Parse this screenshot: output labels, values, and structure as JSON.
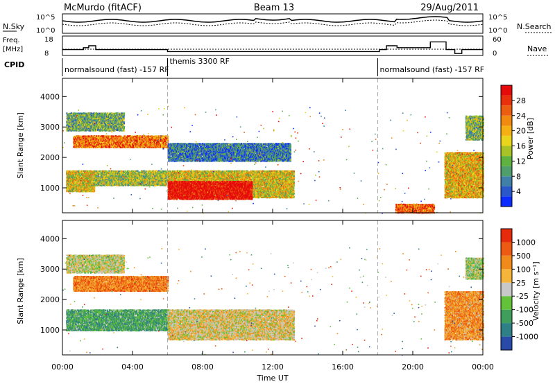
{
  "header": {
    "radio": "McMurdo (fitACF)",
    "beam": "Beam 13",
    "date": "29/Aug/2011"
  },
  "summary_panels": {
    "nsky": {
      "label": "N.Sky",
      "ticks": [
        "10^5",
        "10^0"
      ]
    },
    "nsearch": {
      "label": "N.Search",
      "ticks": [
        "10^5",
        "10^0"
      ]
    },
    "freq": {
      "label_line1": "Freq.",
      "label_line2": "[MHz]",
      "ticks": [
        "18",
        "8"
      ]
    },
    "nave": {
      "label": "Nave",
      "ticks": [
        "60",
        "0"
      ]
    },
    "cpid": {
      "label": "CPID",
      "segments": [
        {
          "name": "normalsound (fast) -157 RF",
          "start_hour": 0,
          "end_hour": 6
        },
        {
          "name": "themis 3300 RF",
          "start_hour": 6,
          "end_hour": 18
        },
        {
          "name": "normalsound (fast) -157 RF",
          "start_hour": 18,
          "end_hour": 24
        }
      ],
      "freq_steps": [
        {
          "start_hour": 0,
          "end_hour": 1.2,
          "value": 11
        },
        {
          "start_hour": 1.2,
          "end_hour": 1.5,
          "value": 12
        },
        {
          "start_hour": 1.5,
          "end_hour": 1.9,
          "value": 13
        },
        {
          "start_hour": 1.9,
          "end_hour": 6.0,
          "value": 11
        },
        {
          "start_hour": 6.0,
          "end_hour": 18.1,
          "value": 10
        },
        {
          "start_hour": 18.1,
          "end_hour": 18.5,
          "value": 11
        },
        {
          "start_hour": 18.5,
          "end_hour": 19.1,
          "value": 13
        },
        {
          "start_hour": 19.1,
          "end_hour": 20.3,
          "value": 12
        },
        {
          "start_hour": 20.3,
          "end_hour": 21.0,
          "value": 12
        },
        {
          "start_hour": 21.0,
          "end_hour": 21.9,
          "value": 15
        },
        {
          "start_hour": 21.9,
          "end_hour": 22.4,
          "value": 11
        },
        {
          "start_hour": 22.4,
          "end_hour": 22.8,
          "value": 9
        },
        {
          "start_hour": 22.8,
          "end_hour": 24.0,
          "value": 11
        }
      ]
    }
  },
  "chart_data": [
    {
      "type": "heatmap",
      "name": "power",
      "ylabel": "Slant Range [km]",
      "ylim": [
        180,
        4600
      ],
      "xlim_hours": [
        0,
        24
      ],
      "yticks": [
        "1000",
        "2000",
        "3000",
        "4000"
      ],
      "colorbar": {
        "label": "Power [dB]",
        "ticks": [
          "4",
          "8",
          "12",
          "16",
          "20",
          "24",
          "28"
        ],
        "colors": [
          "#0a2cff",
          "#2a57c9",
          "#3f7fa8",
          "#4f9e6c",
          "#5fb23f",
          "#a8c227",
          "#e9d51b",
          "#f5b014",
          "#f08a11",
          "#ec5e0f",
          "#e8300c",
          "#e60b0b"
        ]
      },
      "regions": [
        {
          "t": [
            0.2,
            1.8
          ],
          "r": [
            900,
            1600
          ],
          "level": 0.55
        },
        {
          "t": [
            1.8,
            6.0
          ],
          "r": [
            1100,
            1600
          ],
          "level": 0.45
        },
        {
          "t": [
            6.0,
            13.2
          ],
          "r": [
            700,
            1600
          ],
          "level": 0.55
        },
        {
          "t": [
            6.0,
            10.8
          ],
          "r": [
            650,
            1250
          ],
          "level": 1.0
        },
        {
          "t": [
            0.6,
            6.0
          ],
          "r": [
            2350,
            2750
          ],
          "level": 0.75
        },
        {
          "t": [
            0.2,
            3.5
          ],
          "r": [
            2900,
            3500
          ],
          "level": 0.35
        },
        {
          "t": [
            6.0,
            13.0
          ],
          "r": [
            1900,
            2500
          ],
          "level": 0.2
        },
        {
          "t": [
            21.8,
            24.0
          ],
          "r": [
            700,
            2200
          ],
          "level": 0.6
        },
        {
          "t": [
            23.0,
            24.0
          ],
          "r": [
            2600,
            3400
          ],
          "level": 0.4
        },
        {
          "t": [
            19.0,
            21.2
          ],
          "r": [
            200,
            500
          ],
          "level": 0.8
        }
      ]
    },
    {
      "type": "heatmap",
      "name": "velocity",
      "ylabel": "Slant Range [km]",
      "ylim": [
        180,
        4600
      ],
      "xlim_hours": [
        0,
        24
      ],
      "yticks": [
        "1000",
        "2000",
        "3000",
        "4000"
      ],
      "xticks": [
        "00:00",
        "04:00",
        "08:00",
        "12:00",
        "16:00",
        "20:00",
        "00:00"
      ],
      "xlabel": "Time UT",
      "colorbar": {
        "label": "Velocity [m s⁻¹]",
        "ticks": [
          "1000",
          "500",
          "100",
          "25",
          "-25",
          "-100",
          "-500",
          "-1000"
        ],
        "colors": [
          "#2a4aa8",
          "#2f7f86",
          "#3f9e5c",
          "#64c23a",
          "#c8c8c8",
          "#f5b53a",
          "#f08a1a",
          "#ec5a14",
          "#e62a0c"
        ]
      },
      "regions": [
        {
          "t": [
            0.2,
            6.0
          ],
          "r": [
            1000,
            1700
          ],
          "level": 0.3
        },
        {
          "t": [
            6.0,
            13.2
          ],
          "r": [
            700,
            1700
          ],
          "level": 0.55
        },
        {
          "t": [
            0.6,
            6.0
          ],
          "r": [
            2300,
            2800
          ],
          "level": 0.75
        },
        {
          "t": [
            0.2,
            3.5
          ],
          "r": [
            2900,
            3500
          ],
          "level": 0.5
        },
        {
          "t": [
            21.8,
            24.0
          ],
          "r": [
            700,
            2300
          ],
          "level": 0.7
        },
        {
          "t": [
            23.0,
            24.0
          ],
          "r": [
            2700,
            3400
          ],
          "level": 0.45
        }
      ]
    }
  ]
}
